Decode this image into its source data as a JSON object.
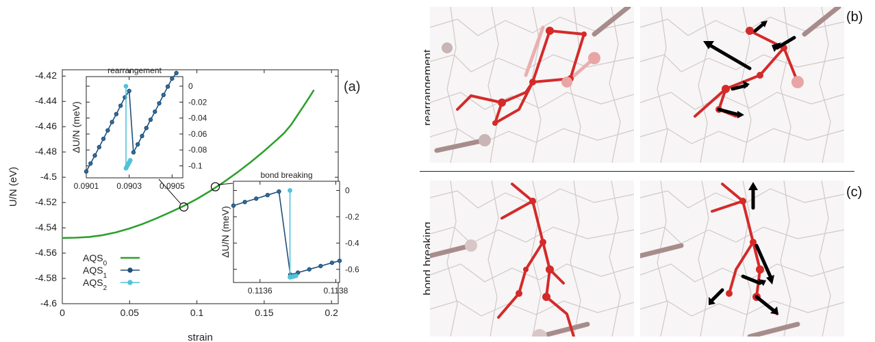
{
  "chart_data": [
    {
      "type": "line",
      "panel_label": "(a)",
      "xlabel": "strain",
      "ylabel": "U/N  (eV)",
      "xlim": [
        0,
        0.205
      ],
      "ylim": [
        -4.6,
        -4.415
      ],
      "xticks": [
        0,
        0.05,
        0.1,
        0.15,
        0.2
      ],
      "xtick_labels": [
        "0",
        "0.05",
        "0.1",
        "0.15",
        "0.2"
      ],
      "yticks": [
        -4.6,
        -4.58,
        -4.56,
        -4.54,
        -4.52,
        -4.5,
        -4.48,
        -4.46,
        -4.44,
        -4.42
      ],
      "ytick_labels": [
        "-4.6",
        "-4.58",
        "-4.56",
        "-4.54",
        "-4.52",
        "-4.5",
        "-4.48",
        "-4.46",
        "-4.44",
        "-4.42"
      ],
      "grid": false,
      "legend_position": "bottom-left",
      "series": [
        {
          "name": "AQS",
          "subscript": "0",
          "color": "#2ca02c",
          "x": [
            0,
            0.01,
            0.02,
            0.03,
            0.04,
            0.05,
            0.06,
            0.07,
            0.08,
            0.09,
            0.1,
            0.11,
            0.12,
            0.13,
            0.14,
            0.15,
            0.16,
            0.165,
            0.17,
            0.18,
            0.187
          ],
          "y": [
            -4.548,
            -4.5478,
            -4.5472,
            -4.5458,
            -4.5435,
            -4.5405,
            -4.5368,
            -4.5325,
            -4.5278,
            -4.5228,
            -4.5172,
            -4.5108,
            -4.5038,
            -4.4962,
            -4.488,
            -4.4792,
            -4.4698,
            -4.4648,
            -4.4585,
            -4.4425,
            -4.431
          ]
        },
        {
          "name": "AQS",
          "subscript": "1",
          "color": "#1f4e79",
          "x": [],
          "y": []
        },
        {
          "name": "AQS",
          "subscript": "2",
          "color": "#4fc3d9",
          "x": [],
          "y": []
        }
      ],
      "markers": [
        {
          "x": 0.0903,
          "y": -4.5235
        },
        {
          "x": 0.1137,
          "y": -4.5075
        }
      ]
    },
    {
      "type": "line",
      "title": "rearrangement",
      "ylabel": "ΔU/N  (meV)",
      "xlim": [
        0.0901,
        0.09055
      ],
      "ylim": [
        -0.115,
        0.012
      ],
      "xticks": [
        0.0901,
        0.0903,
        0.0905
      ],
      "xtick_labels": [
        "0.0901",
        "0.0903",
        "0.0905"
      ],
      "yticks": [
        0,
        -0.02,
        -0.04,
        -0.06,
        -0.08,
        -0.1
      ],
      "ytick_labels": [
        "0",
        "-0.02",
        "-0.04",
        "-0.06",
        "-0.08",
        "-0.1"
      ],
      "series": [
        {
          "name": "AQS1",
          "color": "#1f4e79",
          "x": [
            0.0901,
            0.09012,
            0.09014,
            0.09016,
            0.09018,
            0.0902,
            0.09022,
            0.09024,
            0.09026,
            0.09028,
            0.0903,
            0.09032,
            0.09034,
            0.09036,
            0.09038,
            0.0904,
            0.09042,
            0.09044,
            0.09046,
            0.09048,
            0.0905,
            0.09052
          ],
          "y": [
            -0.107,
            -0.097,
            -0.087,
            -0.0765,
            -0.066,
            -0.0555,
            -0.045,
            -0.035,
            -0.0245,
            -0.014,
            -0.006,
            -0.083,
            -0.073,
            -0.0625,
            -0.0525,
            -0.042,
            -0.032,
            -0.0215,
            -0.011,
            -0.0005,
            0.0095,
            0.0165
          ]
        },
        {
          "name": "AQS2",
          "color": "#4fc3d9",
          "x": [
            0.090285,
            0.090285,
            0.090289,
            0.090293,
            0.090297,
            0.090301,
            0.090305
          ],
          "y": [
            0.0,
            -0.103,
            -0.101,
            -0.099,
            -0.097,
            -0.095,
            -0.093
          ]
        }
      ]
    },
    {
      "type": "line",
      "title": "bond breaking",
      "ylabel": "ΔU/N  (meV)",
      "xlim": [
        0.11353,
        0.11381
      ],
      "ylim": [
        -0.7,
        0.07
      ],
      "xticks": [
        0.1136,
        0.1138
      ],
      "xtick_labels": [
        "0.1136",
        "0.1138"
      ],
      "yticks": [
        0,
        -0.2,
        -0.4,
        -0.6
      ],
      "ytick_labels": [
        "0",
        "-0.2",
        "-0.4",
        "-0.6"
      ],
      "series": [
        {
          "name": "AQS1",
          "color": "#1f4e79",
          "x": [
            0.11353,
            0.11356,
            0.11359,
            0.11362,
            0.11365,
            0.11368,
            0.1137,
            0.11373,
            0.11376,
            0.11379,
            0.11381
          ],
          "y": [
            -0.115,
            -0.088,
            -0.062,
            -0.035,
            -0.008,
            -0.64,
            -0.625,
            -0.6,
            -0.575,
            -0.55,
            -0.535
          ]
        },
        {
          "name": "AQS2",
          "color": "#4fc3d9",
          "x": [
            0.113679,
            0.113679,
            0.113683,
            0.113687,
            0.113691,
            0.113695
          ],
          "y": [
            0.0,
            -0.66,
            -0.658,
            -0.655,
            -0.652,
            -0.649
          ]
        }
      ]
    }
  ],
  "panels": {
    "label_b": "(b)",
    "label_c": "(c)",
    "row_top_label": "rearrangement",
    "row_bottom_label": "bond breaking"
  }
}
